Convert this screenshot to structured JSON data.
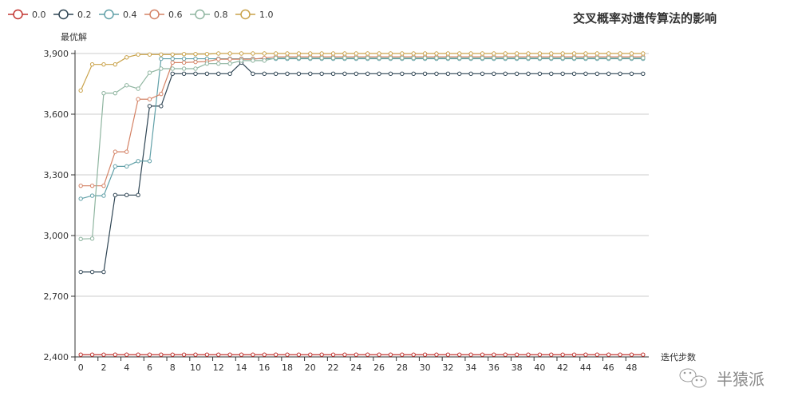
{
  "chart_data": {
    "type": "line",
    "title": "交叉概率对遗传算法的影响",
    "xlabel": "迭代步数",
    "ylabel": "最优解",
    "ylim": [
      2400,
      3900
    ],
    "yticks": [
      2400,
      2700,
      3000,
      3300,
      3600,
      3900
    ],
    "ytick_labels": [
      "2,400",
      "2,700",
      "3,000",
      "3,300",
      "3,600",
      "3,900"
    ],
    "x": [
      0,
      1,
      2,
      3,
      4,
      5,
      6,
      7,
      8,
      9,
      10,
      11,
      12,
      13,
      14,
      15,
      16,
      17,
      18,
      19,
      20,
      21,
      22,
      23,
      24,
      25,
      26,
      27,
      28,
      29,
      30,
      31,
      32,
      33,
      34,
      35,
      36,
      37,
      38,
      39,
      40,
      41,
      42,
      43,
      44,
      45,
      46,
      47,
      48,
      49
    ],
    "xtick_labels": [
      "0",
      "2",
      "4",
      "6",
      "8",
      "10",
      "12",
      "14",
      "16",
      "18",
      "20",
      "22",
      "24",
      "26",
      "28",
      "30",
      "32",
      "34",
      "36",
      "38",
      "40",
      "42",
      "44",
      "46",
      "48"
    ],
    "grid": "horizontal",
    "legend_position": "top-left",
    "series": [
      {
        "name": "0.0",
        "color": "#c23531",
        "values": [
          2411,
          2411,
          2411,
          2411,
          2411,
          2411,
          2411,
          2411,
          2411,
          2411,
          2411,
          2411,
          2411,
          2411,
          2411,
          2411,
          2411,
          2411,
          2411,
          2411,
          2411,
          2411,
          2411,
          2411,
          2411,
          2411,
          2411,
          2411,
          2411,
          2411,
          2411,
          2411,
          2411,
          2411,
          2411,
          2411,
          2411,
          2411,
          2411,
          2411,
          2411,
          2411,
          2411,
          2411,
          2411,
          2411,
          2411,
          2411,
          2411,
          2411
        ]
      },
      {
        "name": "0.2",
        "color": "#2f4554",
        "values": [
          2820,
          2820,
          2820,
          3200,
          3200,
          3200,
          3640,
          3640,
          3800,
          3800,
          3800,
          3800,
          3800,
          3800,
          3855,
          3800,
          3800,
          3800,
          3800,
          3800,
          3800,
          3800,
          3800,
          3800,
          3800,
          3800,
          3800,
          3800,
          3800,
          3800,
          3800,
          3800,
          3800,
          3800,
          3800,
          3800,
          3800,
          3800,
          3800,
          3800,
          3800,
          3800,
          3800,
          3800,
          3800,
          3800,
          3800,
          3800,
          3800,
          3800
        ]
      },
      {
        "name": "0.4",
        "color": "#61a0a8",
        "values": [
          3182,
          3197,
          3197,
          3342,
          3342,
          3368,
          3368,
          3874,
          3874,
          3874,
          3874,
          3874,
          3874,
          3874,
          3874,
          3874,
          3874,
          3874,
          3874,
          3874,
          3874,
          3874,
          3874,
          3874,
          3874,
          3874,
          3874,
          3874,
          3874,
          3874,
          3874,
          3874,
          3874,
          3874,
          3874,
          3874,
          3874,
          3874,
          3874,
          3874,
          3874,
          3874,
          3874,
          3874,
          3874,
          3874,
          3874,
          3874,
          3874,
          3874
        ]
      },
      {
        "name": "0.6",
        "color": "#d48265",
        "values": [
          3246,
          3246,
          3246,
          3414,
          3414,
          3674,
          3674,
          3700,
          3855,
          3855,
          3858,
          3860,
          3872,
          3872,
          3872,
          3872,
          3878,
          3884,
          3884,
          3884,
          3884,
          3884,
          3884,
          3884,
          3884,
          3884,
          3884,
          3884,
          3884,
          3884,
          3884,
          3884,
          3884,
          3884,
          3884,
          3884,
          3884,
          3884,
          3884,
          3884,
          3884,
          3884,
          3884,
          3884,
          3884,
          3884,
          3884,
          3884,
          3884,
          3884
        ]
      },
      {
        "name": "0.8",
        "color": "#8fb5a0",
        "values": [
          2983,
          2985,
          3704,
          3704,
          3743,
          3726,
          3805,
          3825,
          3825,
          3825,
          3825,
          3850,
          3850,
          3850,
          3865,
          3865,
          3865,
          3878,
          3878,
          3878,
          3878,
          3878,
          3878,
          3878,
          3878,
          3878,
          3878,
          3878,
          3878,
          3878,
          3878,
          3878,
          3878,
          3878,
          3878,
          3878,
          3878,
          3878,
          3878,
          3878,
          3878,
          3878,
          3878,
          3878,
          3878,
          3878,
          3878,
          3878,
          3878,
          3878
        ]
      },
      {
        "name": "1.0",
        "color": "#c9a24a",
        "values": [
          3717,
          3846,
          3846,
          3846,
          3881,
          3895,
          3895,
          3895,
          3895,
          3897,
          3897,
          3897,
          3900,
          3900,
          3900,
          3900,
          3900,
          3900,
          3900,
          3900,
          3900,
          3900,
          3900,
          3900,
          3900,
          3900,
          3900,
          3900,
          3900,
          3900,
          3900,
          3900,
          3900,
          3900,
          3900,
          3900,
          3900,
          3900,
          3900,
          3900,
          3900,
          3900,
          3900,
          3900,
          3900,
          3900,
          3900,
          3900,
          3900,
          3900
        ]
      }
    ]
  },
  "watermark": {
    "text": "半猿派",
    "icon": "wechat-icon"
  }
}
